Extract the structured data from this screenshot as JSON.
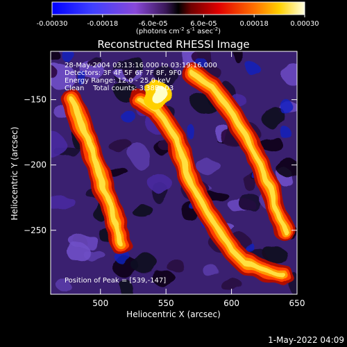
{
  "chart_data": {
    "type": "heatmap",
    "title": "Reconstructed RHESSI Image",
    "xlabel": "Heliocentric X (arcsec)",
    "ylabel": "Heliocentric Y (arcsec)",
    "xlim": [
      462,
      650
    ],
    "ylim": [
      -299,
      -113
    ],
    "xticks": [
      500,
      550,
      600,
      650
    ],
    "yticks": [
      -150,
      -200,
      -250
    ],
    "colorbar": {
      "min": -0.0003,
      "max": 0.0003,
      "tick_labels": [
        "-0.00030",
        "-0.00018",
        "-6.0e-05",
        "6.0e-05",
        "0.00018",
        "0.00030"
      ],
      "tick_values": [
        -0.0003,
        -0.00018,
        -6e-05,
        6e-05,
        0.00018,
        0.0003
      ],
      "unit_main": "(photons cm",
      "unit_sup1": "-2",
      "unit_s": " s",
      "unit_sup2": "-1",
      "unit_asec": " asec",
      "unit_sup3": "-2",
      "unit_close": ")"
    },
    "annotations": [
      "28-May-2004 03:13:16.000 to 03:19:16.000",
      "Detectors: 3F 4F 5F 6F 7F 8F, 9F0",
      "Energy Range: 12.0 - 25.0 keV",
      "Clean    Total counts: 3.38E+03"
    ],
    "peak_label": "Position of Peak = [539,-147]",
    "peak": [
      539,
      -147
    ],
    "bright_ridges": [
      {
        "x": [
          530,
          545,
          558,
          565,
          578,
          590,
          600,
          610,
          625,
          640
        ],
        "y": [
          -150,
          -160,
          -180,
          -205,
          -230,
          -250,
          -265,
          -275,
          -280,
          -285
        ]
      },
      {
        "x": [
          570,
          585,
          600,
          615,
          628,
          640
        ],
        "y": [
          -130,
          -140,
          -160,
          -185,
          -215,
          -250
        ]
      },
      {
        "x": [
          478,
          490,
          505,
          512,
          515
        ],
        "y": [
          -150,
          -180,
          -225,
          -245,
          -260
        ]
      }
    ],
    "footer": "1-May-2022 04:09"
  }
}
